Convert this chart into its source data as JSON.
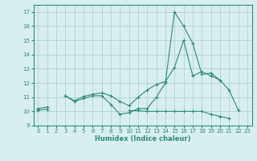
{
  "x": [
    0,
    1,
    2,
    3,
    4,
    5,
    6,
    7,
    8,
    9,
    10,
    11,
    12,
    13,
    14,
    15,
    16,
    17,
    18,
    19,
    20,
    21,
    22,
    23
  ],
  "curve1": [
    10.2,
    10.3,
    null,
    11.1,
    10.7,
    10.9,
    11.1,
    11.1,
    10.5,
    9.8,
    9.9,
    10.2,
    10.2,
    11.0,
    12.0,
    17.0,
    16.0,
    14.8,
    12.6,
    12.7,
    12.2,
    11.5,
    10.1,
    null
  ],
  "curve2": [
    10.1,
    null,
    null,
    11.1,
    10.75,
    11.05,
    11.2,
    11.3,
    11.1,
    10.7,
    10.4,
    11.0,
    11.5,
    11.9,
    12.1,
    13.1,
    15.0,
    12.5,
    12.8,
    12.5,
    12.2,
    null,
    null,
    null
  ],
  "curve3": [
    10.1,
    10.15,
    null,
    null,
    null,
    null,
    null,
    null,
    null,
    null,
    10.05,
    10.05,
    10.0,
    10.0,
    10.0,
    10.0,
    10.0,
    10.0,
    10.0,
    9.8,
    9.65,
    9.5,
    null,
    null
  ],
  "line_color": "#2e8b7a",
  "bg_color": "#d8efee",
  "grid_color": "#a8cece",
  "xlabel": "Humidex (Indice chaleur)",
  "xlim": [
    -0.5,
    23.5
  ],
  "ylim": [
    9,
    17.5
  ],
  "yticks": [
    9,
    10,
    11,
    12,
    13,
    14,
    15,
    16,
    17
  ],
  "xticks": [
    0,
    1,
    2,
    3,
    4,
    5,
    6,
    7,
    8,
    9,
    10,
    11,
    12,
    13,
    14,
    15,
    16,
    17,
    18,
    19,
    20,
    21,
    22,
    23
  ]
}
